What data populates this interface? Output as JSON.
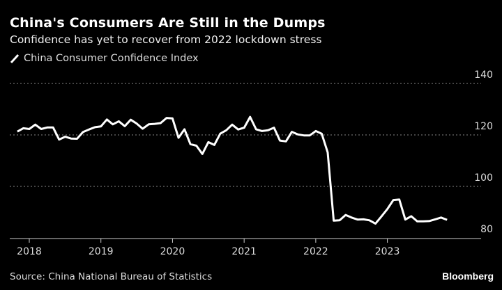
{
  "chart_data": {
    "type": "line",
    "title": "China's Consumers Are Still in the Dumps",
    "subtitle": "Confidence has yet to recover from 2022 lockdown stress",
    "source": "Source: China National Bureau of Statistics",
    "brand": "Bloomberg",
    "legend_position": "top-left",
    "grid": true,
    "colors": {
      "background": "#000000",
      "line": "#ffffff",
      "grid": "#888888"
    },
    "x_start": "2017-11",
    "x_end": "2023-11",
    "x_ticks": [
      "2018",
      "2019",
      "2020",
      "2021",
      "2022",
      "2023"
    ],
    "y_ticks": [
      80,
      100,
      120,
      140
    ],
    "ylim": [
      80,
      140
    ],
    "series": [
      {
        "name": "China Consumer Confidence Index",
        "start": "2017-11",
        "frequency": "monthly",
        "values": [
          121.3,
          122.6,
          122.3,
          124.0,
          122.3,
          122.9,
          122.9,
          118.2,
          119.3,
          118.6,
          118.5,
          121.1,
          122.1,
          123.0,
          123.3,
          126.0,
          124.1,
          125.3,
          123.4,
          125.9,
          124.4,
          122.4,
          124.1,
          124.3,
          124.6,
          126.6,
          126.4,
          118.9,
          122.2,
          116.4,
          115.8,
          112.6,
          117.2,
          116.1,
          120.5,
          121.8,
          124.0,
          122.1,
          122.8,
          127.0,
          122.2,
          121.5,
          121.8,
          122.8,
          117.8,
          117.5,
          121.2,
          120.2,
          119.8,
          119.8,
          121.5,
          120.5,
          113.2,
          86.7,
          86.8,
          88.9,
          87.9,
          87.1,
          87.2,
          86.8,
          85.5,
          88.3,
          91.2,
          94.7,
          94.9,
          87.1,
          88.4,
          86.4,
          86.4,
          86.5,
          87.2,
          87.9,
          87.0
        ]
      }
    ]
  }
}
